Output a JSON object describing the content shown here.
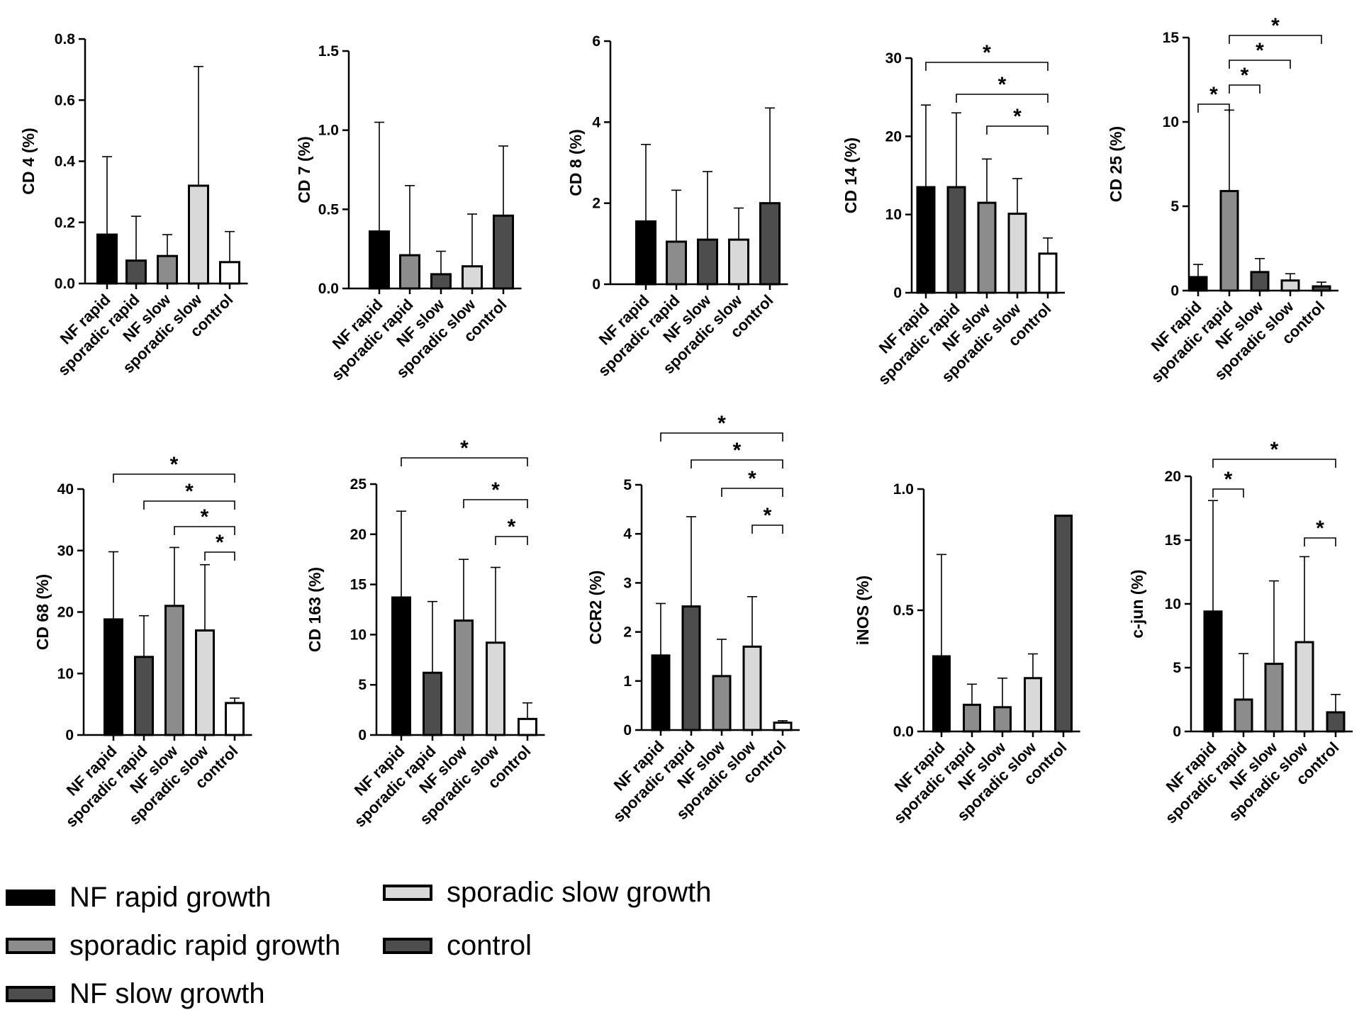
{
  "colors": {
    "black": "#000000",
    "dark_gray": "#4d4d4d",
    "mid_gray": "#8c8c8c",
    "light_gray": "#d9d9d9",
    "white": "#ffffff"
  },
  "chart_data": [
    {
      "type": "bar",
      "title": "",
      "xlabel": "",
      "ylabel": "CD 4 (%)",
      "categories": [
        "NF rapid",
        "sporadic rapid",
        "NF slow",
        "sporadic slow",
        "control"
      ],
      "ylim": [
        0,
        0.8
      ],
      "yticks": [
        0,
        0.2,
        0.4,
        0.6,
        0.8
      ],
      "ytick_labels": [
        "0.0",
        "0.2",
        "0.4",
        "0.6",
        "0.8"
      ],
      "values": [
        0.16,
        0.075,
        0.09,
        0.32,
        0.07
      ],
      "errors": [
        0.255,
        0.145,
        0.07,
        0.39,
        0.1
      ],
      "fills": [
        "black",
        "dark_gray",
        "mid_gray",
        "light_gray",
        "white"
      ],
      "significance": []
    },
    {
      "type": "bar",
      "title": "",
      "xlabel": "",
      "ylabel": "CD 7 (%)",
      "categories": [
        "NF rapid",
        "sporadic rapid",
        "NF slow",
        "sporadic slow",
        "control"
      ],
      "ylim": [
        0,
        1.5
      ],
      "yticks": [
        0,
        0.5,
        1.0,
        1.5
      ],
      "ytick_labels": [
        "0.0",
        "0.5",
        "1.0",
        "1.5"
      ],
      "values": [
        0.36,
        0.21,
        0.09,
        0.14,
        0.46
      ],
      "errors": [
        0.69,
        0.44,
        0.145,
        0.33,
        0.44
      ],
      "fills": [
        "black",
        "mid_gray",
        "dark_gray",
        "light_gray",
        "dark_gray"
      ],
      "significance": []
    },
    {
      "type": "bar",
      "title": "",
      "xlabel": "",
      "ylabel": "CD 8 (%)",
      "categories": [
        "NF rapid",
        "sporadic rapid",
        "NF slow",
        "sporadic slow",
        "control"
      ],
      "ylim": [
        0,
        6
      ],
      "yticks": [
        0,
        2,
        4,
        6
      ],
      "ytick_labels": [
        "0",
        "2",
        "4",
        "6"
      ],
      "values": [
        1.55,
        1.05,
        1.1,
        1.1,
        2.0
      ],
      "errors": [
        1.9,
        1.27,
        1.68,
        0.78,
        2.35
      ],
      "fills": [
        "black",
        "mid_gray",
        "dark_gray",
        "light_gray",
        "dark_gray"
      ],
      "significance": []
    },
    {
      "type": "bar",
      "title": "",
      "xlabel": "",
      "ylabel": "CD 14 (%)",
      "categories": [
        "NF rapid",
        "sporadic rapid",
        "NF slow",
        "sporadic slow",
        "control"
      ],
      "ylim": [
        0,
        30
      ],
      "yticks": [
        0,
        10,
        20,
        30
      ],
      "ytick_labels": [
        "0",
        "10",
        "20",
        "30"
      ],
      "values": [
        13.5,
        13.5,
        11.5,
        10.1,
        5.0
      ],
      "errors": [
        10.5,
        9.5,
        5.6,
        4.5,
        2.0
      ],
      "fills": [
        "black",
        "dark_gray",
        "mid_gray",
        "light_gray",
        "white"
      ],
      "significance": [
        {
          "from": 0,
          "to": 4,
          "label": "*"
        },
        {
          "from": 1,
          "to": 4,
          "label": "*"
        },
        {
          "from": 2,
          "to": 4,
          "label": "*"
        }
      ]
    },
    {
      "type": "bar",
      "title": "",
      "xlabel": "",
      "ylabel": "CD 25 (%)",
      "categories": [
        "NF rapid",
        "sporadic rapid",
        "NF slow",
        "sporadic slow",
        "control"
      ],
      "ylim": [
        0,
        15
      ],
      "yticks": [
        0,
        5,
        10,
        15
      ],
      "ytick_labels": [
        "0",
        "5",
        "10",
        "15"
      ],
      "values": [
        0.8,
        5.9,
        1.1,
        0.6,
        0.25
      ],
      "errors": [
        0.75,
        4.8,
        0.8,
        0.4,
        0.25
      ],
      "fills": [
        "black",
        "mid_gray",
        "dark_gray",
        "light_gray",
        "dark_gray"
      ],
      "significance": [
        {
          "from": 1,
          "to": 4,
          "label": "*"
        },
        {
          "from": 1,
          "to": 3,
          "label": "*"
        },
        {
          "from": 1,
          "to": 2,
          "label": "*"
        },
        {
          "from": 0,
          "to": 1,
          "label": "*"
        }
      ]
    },
    {
      "type": "bar",
      "title": "",
      "xlabel": "",
      "ylabel": "CD 68 (%)",
      "categories": [
        "NF rapid",
        "sporadic rapid",
        "NF slow",
        "sporadic slow",
        "control"
      ],
      "ylim": [
        0,
        40
      ],
      "yticks": [
        0,
        10,
        20,
        30,
        40
      ],
      "ytick_labels": [
        "0",
        "10",
        "20",
        "30",
        "40"
      ],
      "values": [
        18.8,
        12.7,
        21.0,
        17.0,
        5.2
      ],
      "errors": [
        11.0,
        6.7,
        9.5,
        10.7,
        0.8
      ],
      "fills": [
        "black",
        "dark_gray",
        "mid_gray",
        "light_gray",
        "white"
      ],
      "significance": [
        {
          "from": 0,
          "to": 4,
          "label": "*"
        },
        {
          "from": 1,
          "to": 4,
          "label": "*"
        },
        {
          "from": 2,
          "to": 4,
          "label": "*"
        },
        {
          "from": 3,
          "to": 4,
          "label": "*"
        }
      ]
    },
    {
      "type": "bar",
      "title": "",
      "xlabel": "",
      "ylabel": "CD 163 (%)",
      "categories": [
        "NF rapid",
        "sporadic rapid",
        "NF slow",
        "sporadic slow",
        "control"
      ],
      "ylim": [
        0,
        25
      ],
      "yticks": [
        0,
        5,
        10,
        15,
        20,
        25
      ],
      "ytick_labels": [
        "0",
        "5",
        "10",
        "15",
        "20",
        "25"
      ],
      "values": [
        13.7,
        6.2,
        11.4,
        9.2,
        1.6
      ],
      "errors": [
        8.6,
        7.1,
        6.1,
        7.5,
        1.6
      ],
      "fills": [
        "black",
        "dark_gray",
        "mid_gray",
        "light_gray",
        "white"
      ],
      "significance": [
        {
          "from": 0,
          "to": 4,
          "label": "*"
        },
        {
          "from": 2,
          "to": 4,
          "label": "*"
        },
        {
          "from": 3,
          "to": 4,
          "label": "*"
        }
      ]
    },
    {
      "type": "bar",
      "title": "",
      "xlabel": "",
      "ylabel": "CCR2 (%)",
      "categories": [
        "NF rapid",
        "sporadic rapid",
        "NF slow",
        "sporadic slow",
        "control"
      ],
      "ylim": [
        0,
        5
      ],
      "yticks": [
        0,
        1,
        2,
        3,
        4,
        5
      ],
      "ytick_labels": [
        "0",
        "1",
        "2",
        "3",
        "4",
        "5"
      ],
      "values": [
        1.52,
        2.52,
        1.1,
        1.7,
        0.15
      ],
      "errors": [
        1.06,
        1.83,
        0.75,
        1.02,
        0.04
      ],
      "fills": [
        "black",
        "dark_gray",
        "mid_gray",
        "light_gray",
        "white"
      ],
      "significance": [
        {
          "from": 0,
          "to": 4,
          "label": "*"
        },
        {
          "from": 1,
          "to": 4,
          "label": "*"
        },
        {
          "from": 2,
          "to": 4,
          "label": "*"
        },
        {
          "from": 3,
          "to": 4,
          "label": "*"
        }
      ]
    },
    {
      "type": "bar",
      "title": "",
      "xlabel": "",
      "ylabel": "iNOS (%)",
      "categories": [
        "NF rapid",
        "sporadic rapid",
        "NF slow",
        "sporadic slow",
        "control"
      ],
      "ylim": [
        0,
        1.0
      ],
      "yticks": [
        0,
        0.5,
        1.0
      ],
      "ytick_labels": [
        "0.0",
        "0.5",
        "1.0"
      ],
      "values": [
        0.31,
        0.11,
        0.1,
        0.22,
        0.89
      ],
      "errors": [
        0.42,
        0.085,
        0.12,
        0.1,
        0
      ],
      "fills": [
        "black",
        "mid_gray",
        "mid_gray",
        "light_gray",
        "dark_gray"
      ],
      "significance": []
    },
    {
      "type": "bar",
      "title": "",
      "xlabel": "",
      "ylabel": "c-jun (%)",
      "categories": [
        "NF rapid",
        "sporadic rapid",
        "NF slow",
        "sporadic slow",
        "control"
      ],
      "ylim": [
        0,
        20
      ],
      "yticks": [
        0,
        5,
        10,
        15,
        20
      ],
      "ytick_labels": [
        "0",
        "5",
        "10",
        "15",
        "20"
      ],
      "values": [
        9.4,
        2.5,
        5.3,
        7.0,
        1.5
      ],
      "errors": [
        8.7,
        3.6,
        6.5,
        6.7,
        1.4
      ],
      "fills": [
        "black",
        "mid_gray",
        "mid_gray",
        "light_gray",
        "dark_gray"
      ],
      "significance": [
        {
          "from": 0,
          "to": 4,
          "label": "*"
        },
        {
          "from": 0,
          "to": 1,
          "label": "*"
        },
        {
          "from": 3,
          "to": 4,
          "label": "*"
        }
      ]
    }
  ],
  "legend": {
    "items": [
      {
        "label": "NF rapid growth",
        "fill": "black"
      },
      {
        "label": "sporadic rapid growth",
        "fill": "mid_gray"
      },
      {
        "label": "NF slow growth",
        "fill": "dark_gray"
      },
      {
        "label": "sporadic slow growth",
        "fill": "light_gray"
      },
      {
        "label": "control",
        "fill": "dark_gray"
      }
    ]
  }
}
